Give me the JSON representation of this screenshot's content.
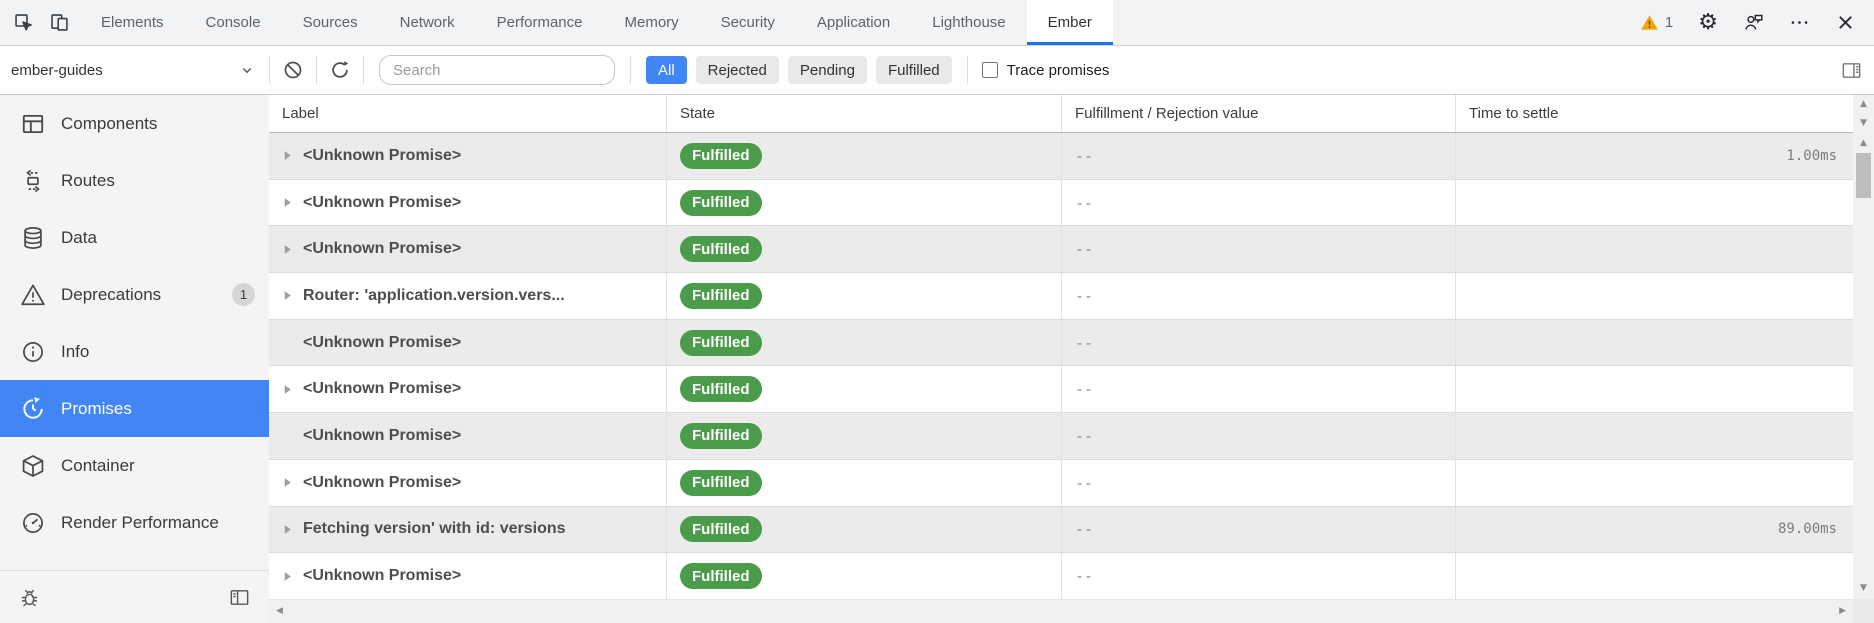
{
  "tabbar": {
    "tabs": [
      {
        "label": "Elements",
        "active": false
      },
      {
        "label": "Console",
        "active": false
      },
      {
        "label": "Sources",
        "active": false
      },
      {
        "label": "Network",
        "active": false
      },
      {
        "label": "Performance",
        "active": false
      },
      {
        "label": "Memory",
        "active": false
      },
      {
        "label": "Security",
        "active": false
      },
      {
        "label": "Application",
        "active": false
      },
      {
        "label": "Lighthouse",
        "active": false
      },
      {
        "label": "Ember",
        "active": true
      }
    ],
    "warning_count": "1"
  },
  "toolbar": {
    "app_select": {
      "value": "ember-guides"
    },
    "search": {
      "placeholder": "Search"
    },
    "filters": [
      {
        "label": "All",
        "active": true
      },
      {
        "label": "Rejected",
        "active": false
      },
      {
        "label": "Pending",
        "active": false
      },
      {
        "label": "Fulfilled",
        "active": false
      }
    ],
    "trace_promises_label": "Trace promises"
  },
  "sidebar": {
    "items": [
      {
        "label": "Components",
        "icon": "components-icon",
        "active": false,
        "badge": ""
      },
      {
        "label": "Routes",
        "icon": "routes-icon",
        "active": false,
        "badge": ""
      },
      {
        "label": "Data",
        "icon": "data-icon",
        "active": false,
        "badge": ""
      },
      {
        "label": "Deprecations",
        "icon": "deprecations-icon",
        "active": false,
        "badge": "1"
      },
      {
        "label": "Info",
        "icon": "info-icon",
        "active": false,
        "badge": ""
      },
      {
        "label": "Promises",
        "icon": "promises-icon",
        "active": true,
        "badge": ""
      },
      {
        "label": "Container",
        "icon": "container-icon",
        "active": false,
        "badge": ""
      },
      {
        "label": "Render Performance",
        "icon": "render-performance-icon",
        "active": false,
        "badge": ""
      }
    ]
  },
  "table": {
    "columns": [
      "Label",
      "State",
      "Fulfillment / Rejection value",
      "Time to settle"
    ],
    "rows": [
      {
        "label": "<Unknown Promise>",
        "expandable": true,
        "state": "Fulfilled",
        "value": "--",
        "time": "1.00ms"
      },
      {
        "label": "<Unknown Promise>",
        "expandable": true,
        "state": "Fulfilled",
        "value": "--",
        "time": ""
      },
      {
        "label": "<Unknown Promise>",
        "expandable": true,
        "state": "Fulfilled",
        "value": "--",
        "time": ""
      },
      {
        "label": "Router: 'application.version.vers...",
        "expandable": true,
        "state": "Fulfilled",
        "value": "--",
        "time": ""
      },
      {
        "label": "<Unknown Promise>",
        "expandable": false,
        "state": "Fulfilled",
        "value": "--",
        "time": ""
      },
      {
        "label": "<Unknown Promise>",
        "expandable": true,
        "state": "Fulfilled",
        "value": "--",
        "time": ""
      },
      {
        "label": "<Unknown Promise>",
        "expandable": false,
        "state": "Fulfilled",
        "value": "--",
        "time": ""
      },
      {
        "label": "<Unknown Promise>",
        "expandable": true,
        "state": "Fulfilled",
        "value": "--",
        "time": ""
      },
      {
        "label": "Fetching version' with id: versions",
        "expandable": true,
        "state": "Fulfilled",
        "value": "--",
        "time": "89.00ms"
      },
      {
        "label": "<Unknown Promise>",
        "expandable": true,
        "state": "Fulfilled",
        "value": "--",
        "time": ""
      }
    ]
  },
  "colors": {
    "accent_blue": "#4285f4",
    "tab_underline_blue": "#1a73e8",
    "badge_green": "#4a9b4a",
    "warning_amber": "#f0a600",
    "row_stripe": "#ebebeb"
  }
}
